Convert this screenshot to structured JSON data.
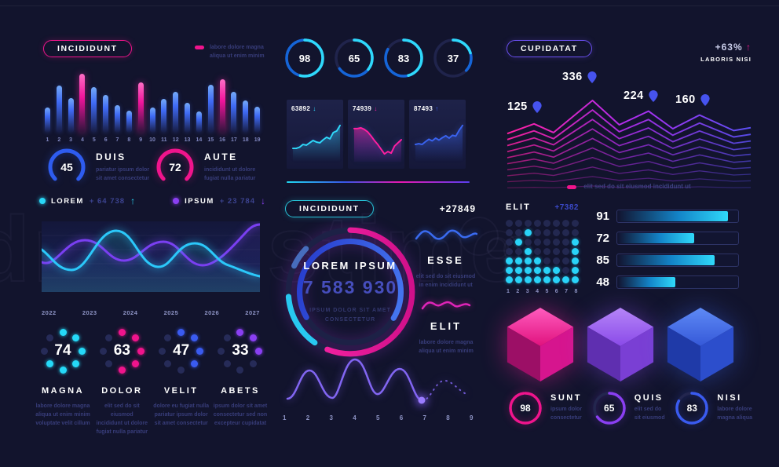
{
  "watermark": {
    "text": "dreamstime"
  },
  "left": {
    "pill": "INCIDIDUNT",
    "legend": [
      "labore dolore magna",
      "aliqua ut enim minim"
    ],
    "gauges": [
      {
        "label": "DUIS",
        "desc": [
          "pariatur ipsum dolor",
          "sit amet consectetur"
        ]
      },
      {
        "label": "AUTE",
        "desc": [
          "incididunt ut dolore",
          "fugiat nulla pariatur"
        ]
      }
    ],
    "kpis": [
      {
        "label": "LOREM",
        "value": "+ 64 738",
        "arrow": "↑"
      },
      {
        "label": "IPSUM",
        "value": "+ 23 784",
        "arrow": "↓"
      }
    ],
    "dot_stats": [
      {
        "label": "MAGNA",
        "desc": [
          "labore dolore magna",
          "aliqua ut enim minim",
          "voluptate velit cillum"
        ]
      },
      {
        "label": "DOLOR",
        "desc": [
          "elit sed do sit eiusmod",
          "incididunt ut dolore",
          "fugiat nulla pariatur"
        ]
      },
      {
        "label": "VELIT",
        "desc": [
          "dolore eu fugiat nulla",
          "pariatur ipsum dolor",
          "sit amet consectetur"
        ]
      },
      {
        "label": "ABETS",
        "desc": [
          "ipsum dolor sit amet",
          "consectetur sed non",
          "excepteur cupidatat"
        ]
      }
    ]
  },
  "middle": {
    "pill": "INCIDIDUNT",
    "delta": "+27849",
    "donut": {
      "title": "LOREM IPSUM",
      "value": "7 583 930",
      "sub": [
        "IPSUM DOLOR SIT AMET",
        "CONSECTETUR"
      ]
    },
    "sparks": [
      {
        "label": "ESSE",
        "desc": [
          "elit sed do sit eiusmod",
          "in enim incididunt ut"
        ]
      },
      {
        "label": "ELIT",
        "desc": [
          "labore dolore magna",
          "aliqua ut enim minim"
        ]
      }
    ]
  },
  "right": {
    "pill": "CUPIDATAT",
    "delta": "+63%",
    "delta_arrow": "↑",
    "delta_label": "LABORIS NISI",
    "legend": "elit sed do sit eiusmod incididunt ut",
    "bottom_rings": [
      {
        "label": "SUNT",
        "desc": [
          "ipsum dolor",
          "consectetur"
        ]
      },
      {
        "label": "QUIS",
        "desc": [
          "elit sed do",
          "sit eiusmod"
        ]
      },
      {
        "label": "NISI",
        "desc": [
          "labore dolore",
          "magna aliqua"
        ]
      }
    ]
  },
  "chart_data": [
    {
      "id": "bar-equalizer",
      "type": "bar",
      "categories": [
        1,
        2,
        3,
        4,
        5,
        6,
        7,
        8,
        9,
        10,
        11,
        12,
        13,
        14,
        15,
        16,
        17,
        18,
        19
      ],
      "values": [
        32,
        60,
        44,
        75,
        58,
        48,
        35,
        28,
        64,
        32,
        43,
        52,
        38,
        27,
        61,
        68,
        52,
        41,
        33
      ],
      "highlight_categories": [
        4,
        9,
        16
      ],
      "colors": {
        "bar": "#4472f5",
        "highlight": "#ff2da0"
      }
    },
    {
      "id": "gauges",
      "type": "gauge",
      "values": [
        45,
        72
      ],
      "max": 100,
      "labels": [
        "DUIS",
        "AUTE"
      ],
      "colors": [
        "#2e5cf0",
        "#f0148c"
      ]
    },
    {
      "id": "kpis",
      "type": "kpi",
      "items": [
        {
          "label": "LOREM",
          "value": 64738,
          "direction": "up",
          "color": "#29d8f8"
        },
        {
          "label": "IPSUM",
          "value": 23784,
          "direction": "down",
          "color": "#8a3ff2"
        }
      ]
    },
    {
      "id": "wave-years",
      "type": "line",
      "x": [
        "2022",
        "2023",
        "2024",
        "2025",
        "2026",
        "2027"
      ],
      "series": [
        {
          "name": "cyan-wave",
          "color": "#29c8f8"
        },
        {
          "name": "purple-wave",
          "color": "#7a3ff2"
        }
      ]
    },
    {
      "id": "dot-rings",
      "type": "radial-dots",
      "values": [
        74,
        63,
        47,
        33
      ],
      "dots_total": 8,
      "labels": [
        "MAGNA",
        "DOLOR",
        "VELIT",
        "ABETS"
      ],
      "colors": [
        "#25d9f8",
        "#f0148c",
        "#3a5bf0",
        "#8a3ff2"
      ]
    },
    {
      "id": "progress-rings",
      "type": "ring",
      "values": [
        98,
        65,
        83,
        37
      ],
      "color": "#2bd2f8"
    },
    {
      "id": "sparkcards",
      "type": "area",
      "series": [
        {
          "name": "63892",
          "direction": "down",
          "color": "#2fd9fa",
          "points": [
            30,
            30,
            33,
            40,
            38,
            44,
            50,
            46,
            44,
            52,
            58,
            54,
            70,
            74,
            88
          ]
        },
        {
          "name": "74939",
          "direction": "down",
          "color": "#ff1fa0",
          "points": [
            80,
            80,
            82,
            78,
            72,
            62,
            50,
            40,
            28,
            16,
            22,
            18,
            36,
            44,
            52
          ]
        },
        {
          "name": "87493",
          "direction": "up",
          "color": "#3a63f0",
          "points": [
            40,
            42,
            40,
            47,
            53,
            49,
            56,
            51,
            57,
            62,
            56,
            63,
            61,
            76,
            88
          ]
        }
      ]
    },
    {
      "id": "donut",
      "type": "donut",
      "label": "LOREM IPSUM",
      "value": 7583930,
      "delta": 27849
    },
    {
      "id": "purple-wave",
      "type": "line",
      "x": [
        1,
        2,
        3,
        4,
        5,
        6,
        7,
        8,
        9
      ],
      "solid_until": 7,
      "color": "#7a5ff2"
    },
    {
      "id": "mountain",
      "type": "line-stack",
      "lines": 10,
      "markers": [
        {
          "value": 125
        },
        {
          "value": 336
        },
        {
          "value": 224
        },
        {
          "value": 160
        }
      ],
      "anchors": [
        [
          0,
          0.32
        ],
        [
          0.11,
          0.52
        ],
        [
          0.19,
          0.34
        ],
        [
          0.35,
          1
        ],
        [
          0.46,
          0.5
        ],
        [
          0.58,
          0.78
        ],
        [
          0.68,
          0.42
        ],
        [
          0.79,
          0.7
        ],
        [
          0.93,
          0.38
        ],
        [
          1,
          0.44
        ]
      ],
      "colors": [
        "#ff1fa0",
        "#5b4ff5"
      ]
    },
    {
      "id": "dot-matrix",
      "type": "heatmap",
      "label": "ELIT",
      "delta": "+7382",
      "x": [
        1,
        2,
        3,
        4,
        5,
        6,
        7,
        8
      ],
      "rows": [
        "00000000",
        "00100000",
        "01000001",
        "00100001",
        "11110001",
        "11111101",
        "11111111"
      ],
      "on_color": "#29d3f8",
      "off_color": "#232850"
    },
    {
      "id": "hbars",
      "type": "bar",
      "orientation": "horizontal",
      "values": [
        91,
        72,
        85,
        48
      ],
      "pct": [
        92,
        64,
        81,
        48
      ],
      "color": "#2bd2f8"
    },
    {
      "id": "cubes",
      "type": "other",
      "names": [
        "pink-cube",
        "purple-cube",
        "blue-cube"
      ],
      "colors": [
        "#ff1f9b",
        "#9a5ef5",
        "#3c63e8"
      ]
    },
    {
      "id": "bottom-rings",
      "type": "ring",
      "values": [
        98,
        65,
        83
      ],
      "labels": [
        "SUNT",
        "QUIS",
        "NISI"
      ],
      "colors": [
        "#f0148c",
        "#8a3ff2",
        "#3a5bf0"
      ]
    }
  ]
}
